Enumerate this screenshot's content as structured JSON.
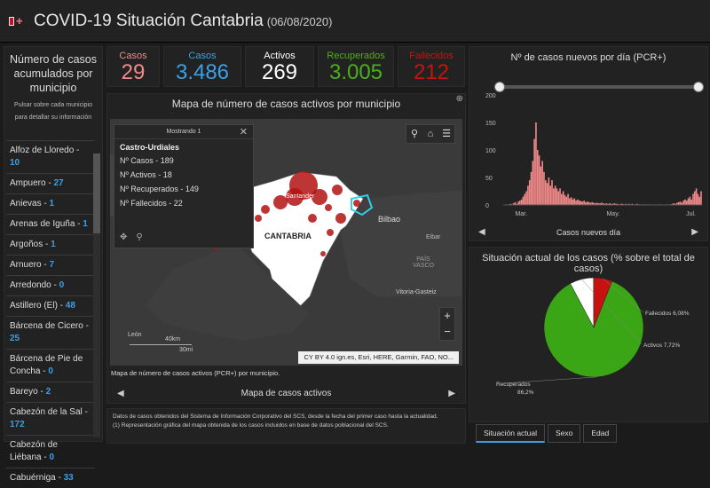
{
  "header": {
    "title": "COVID-19 Situación Cantabria",
    "date": "(06/08/2020)"
  },
  "sidebar": {
    "title": "Número de casos acumulados por municipio",
    "hint": "Pulsar sobre cada municipio para detallar su información",
    "items": [
      {
        "label": "Alfoz de Lloredo - ",
        "n": "10"
      },
      {
        "label": "Ampuero - ",
        "n": "27"
      },
      {
        "label": "Anievas - ",
        "n": "1"
      },
      {
        "label": "Arenas de Iguña - ",
        "n": "1"
      },
      {
        "label": "Argoños - ",
        "n": "1"
      },
      {
        "label": "Arnuero - ",
        "n": "7"
      },
      {
        "label": "Arredondo - ",
        "n": "0"
      },
      {
        "label": "Astillero (El) - ",
        "n": "48"
      },
      {
        "label": "Bárcena de Cicero - ",
        "n": "25"
      },
      {
        "label": "Bárcena de Pie de Concha - ",
        "n": "0"
      },
      {
        "label": "Bareyo - ",
        "n": "2"
      },
      {
        "label": "Cabezón de la Sal - ",
        "n": "172"
      },
      {
        "label": "Cabezón de Liébana - ",
        "n": "0"
      },
      {
        "label": "Cabuérniga - ",
        "n": "33"
      }
    ]
  },
  "stats": {
    "casos_pcr": {
      "label": "Casos",
      "value": "29",
      "color": "#f08b8b"
    },
    "casos_total": {
      "label": "Casos",
      "value": "3.486",
      "color": "#3aa0e8"
    },
    "activos": {
      "label": "Activos",
      "value": "269",
      "color": "#ffffff"
    },
    "recuperados": {
      "label": "Recuperados",
      "value": "3.005",
      "color": "#4caf1a"
    },
    "fallecidos": {
      "label": "Fallecidos",
      "value": "212",
      "color": "#c81212"
    }
  },
  "map": {
    "title": "Mapa de número de casos activos por municipio",
    "caption": "Mapa de número de casos activos (PCR+) por municipio.",
    "footer": "Mapa de casos activos",
    "attribution": "CY BY 4.0 ign.es, Esri, HERE, Garmin, FAO, NO...",
    "labels": {
      "cantabria": "CANTABRIA",
      "santander": "Santander",
      "bilbao": "Bilbao",
      "eibar": "Eibar",
      "pais_vasco": "PAÍS VASCO",
      "vitoria": "Vitoria-Gasteiz",
      "leon": "León"
    },
    "scale": {
      "km": "40km",
      "mi": "30mi"
    },
    "popup": {
      "header": "Mostrando 1",
      "name": "Castro-Urdiales",
      "rows": [
        "Nº Casos - 189",
        "Nº Activos - 18",
        "Nº Recuperados - 149",
        "Nº Fallecidos - 22"
      ]
    }
  },
  "info": {
    "line1": "Datos de casos obtenidos del Sistema de Información Corporativo del SCS, desde la fecha del primer caso hasta la actualidad.",
    "line2": "(1) Representación gráfica del mapa obtenida de los casos incluidos en base de datos poblacional del SCS."
  },
  "daily_chart_title": "Nº de casos nuevos por día (PCR+)",
  "daily_chart_footer": "Casos nuevos día",
  "chart_data": [
    {
      "type": "bar",
      "title": "Nº de casos nuevos por día (PCR+)",
      "xlabel": "Casos nuevos día",
      "ylabel": "",
      "ylim": [
        0,
        200
      ],
      "yticks": [
        "200",
        "150",
        "100",
        "50",
        "0"
      ],
      "xticks": [
        "Mar.",
        "May.",
        "Jul."
      ],
      "color": "#f28a8a",
      "values": [
        0,
        0,
        1,
        0,
        2,
        1,
        3,
        5,
        2,
        6,
        8,
        10,
        15,
        20,
        25,
        35,
        45,
        60,
        80,
        120,
        150,
        100,
        90,
        70,
        80,
        60,
        45,
        40,
        50,
        35,
        45,
        30,
        35,
        30,
        25,
        30,
        20,
        25,
        18,
        15,
        20,
        12,
        14,
        10,
        12,
        8,
        10,
        8,
        7,
        6,
        8,
        5,
        6,
        5,
        4,
        5,
        4,
        3,
        4,
        3,
        3,
        4,
        3,
        2,
        3,
        2,
        3,
        2,
        2,
        3,
        2,
        2,
        1,
        2,
        2,
        1,
        2,
        1,
        2,
        1,
        2,
        1,
        1,
        2,
        1,
        1,
        0,
        1,
        1,
        0,
        1,
        1,
        0,
        0,
        1,
        0,
        1,
        0,
        1,
        0,
        0,
        1,
        0,
        1,
        1,
        2,
        3,
        2,
        4,
        5,
        6,
        4,
        8,
        10,
        8,
        12,
        15,
        10,
        20,
        25,
        30,
        20,
        15,
        25
      ]
    },
    {
      "type": "pie",
      "title": "Situación actual de los casos (% sobre el total de casos)",
      "slices": [
        {
          "label": "Recuperados",
          "value": 86.2,
          "text": "86,2%",
          "color": "#3aa515"
        },
        {
          "label": "Activos",
          "value": 7.72,
          "text": "7,72%",
          "color": "#ffffff"
        },
        {
          "label": "Fallecidos",
          "value": 6.08,
          "text": "6,08%",
          "color": "#c81212"
        }
      ]
    }
  ],
  "tabs": [
    "Situación actual",
    "Sexo",
    "Edad"
  ]
}
